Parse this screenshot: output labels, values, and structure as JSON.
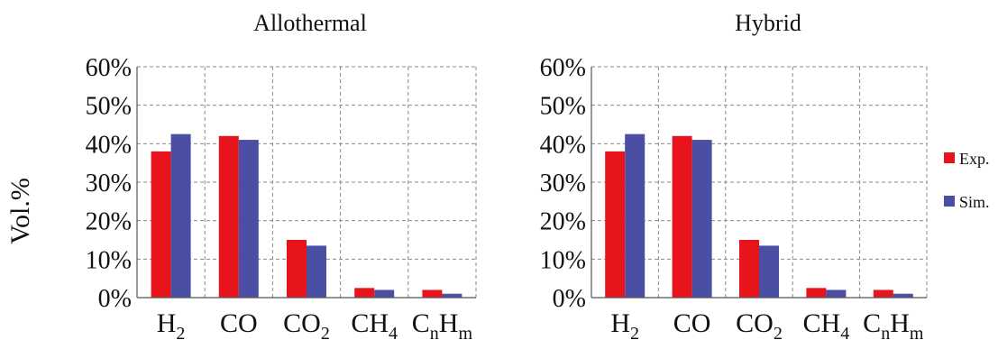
{
  "figure": {
    "ylabel": "Vol.%"
  },
  "chart_data": [
    {
      "type": "bar",
      "title": "Allothermal",
      "categories": [
        {
          "base": "H",
          "sub": "2",
          "sup": ""
        },
        {
          "base": "CO",
          "sub": "",
          "sup": ""
        },
        {
          "base": "CO",
          "sub": "2",
          "sup": ""
        },
        {
          "base": "CH",
          "sub": "4",
          "sup": ""
        },
        {
          "base": "C",
          "sub": "n",
          "tail": "H",
          "tailsub": "m"
        }
      ],
      "series": [
        {
          "name": "Exp.",
          "values": [
            38,
            42,
            15,
            2.5,
            2
          ]
        },
        {
          "name": "Sim.",
          "values": [
            42.5,
            41,
            13.5,
            2,
            1
          ]
        }
      ],
      "ylim": [
        0,
        60
      ],
      "yticks": [
        0,
        10,
        20,
        30,
        40,
        50,
        60
      ],
      "ytick_labels": [
        "0%",
        "10%",
        "20%",
        "30%",
        "40%",
        "50%",
        "60%"
      ],
      "grid": true
    },
    {
      "type": "bar",
      "title": "Hybrid",
      "categories": [
        {
          "base": "H",
          "sub": "2",
          "sup": ""
        },
        {
          "base": "CO",
          "sub": "",
          "sup": ""
        },
        {
          "base": "CO",
          "sub": "2",
          "sup": ""
        },
        {
          "base": "CH",
          "sub": "4",
          "sup": ""
        },
        {
          "base": "C",
          "sub": "n",
          "tail": "H",
          "tailsub": "m"
        }
      ],
      "series": [
        {
          "name": "Exp.",
          "values": [
            38,
            42,
            15,
            2.5,
            2
          ]
        },
        {
          "name": "Sim.",
          "values": [
            42.5,
            41,
            13.5,
            2,
            1
          ]
        }
      ],
      "ylim": [
        0,
        60
      ],
      "yticks": [
        0,
        10,
        20,
        30,
        40,
        50,
        60
      ],
      "ytick_labels": [
        "0%",
        "10%",
        "20%",
        "30%",
        "40%",
        "50%",
        "60%"
      ],
      "grid": true
    }
  ],
  "legend": {
    "placement": "right",
    "entries": [
      {
        "label": "Exp.",
        "color": "#e8141c"
      },
      {
        "label": "Sim.",
        "color": "#4a4fa3"
      }
    ]
  },
  "colors": {
    "exp": "#e8141c",
    "sim": "#4a4fa3",
    "grid": "#8a8a8a",
    "axis": "#555555"
  }
}
